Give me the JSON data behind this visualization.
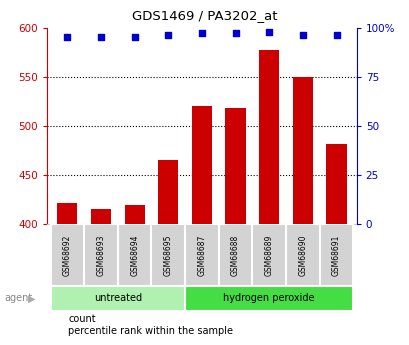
{
  "title": "GDS1469 / PA3202_at",
  "categories": [
    "GSM68692",
    "GSM68693",
    "GSM68694",
    "GSM68695",
    "GSM68687",
    "GSM68688",
    "GSM68689",
    "GSM68690",
    "GSM68691"
  ],
  "counts": [
    422,
    416,
    420,
    465,
    520,
    518,
    577,
    550,
    482
  ],
  "percentile_ranks": [
    95,
    95,
    95,
    96,
    97,
    97,
    98,
    96,
    96
  ],
  "bar_color": "#cc0000",
  "dot_color": "#0000cc",
  "ylim_left": [
    400,
    600
  ],
  "ylim_right": [
    0,
    100
  ],
  "yticks_left": [
    400,
    450,
    500,
    550,
    600
  ],
  "yticks_right": [
    0,
    25,
    50,
    75,
    100
  ],
  "group_defs": [
    {
      "start": 0,
      "end": 3,
      "label": "untreated",
      "color": "#b0f0b0"
    },
    {
      "start": 4,
      "end": 8,
      "label": "hydrogen peroxide",
      "color": "#44dd44"
    }
  ],
  "legend_items": [
    {
      "color": "#cc0000",
      "label": "count"
    },
    {
      "color": "#0000cc",
      "label": "percentile rank within the sample"
    }
  ],
  "tick_color_left": "#cc0000",
  "tick_color_right": "#0000cc",
  "bar_bottom": 400,
  "sample_box_color": "#d3d3d3",
  "agent_label": "agent"
}
